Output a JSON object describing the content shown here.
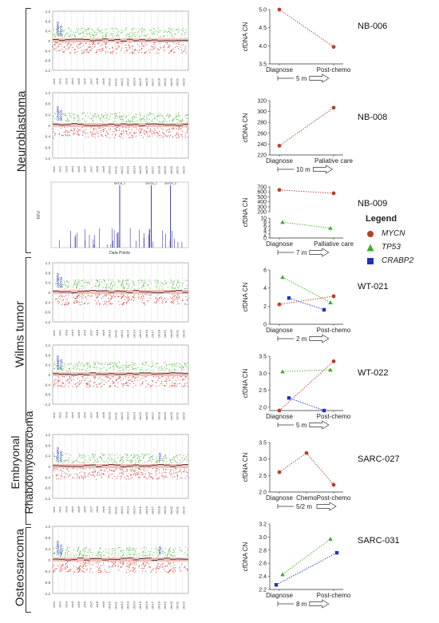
{
  "groups": [
    {
      "label": "Neuroblastoma"
    },
    {
      "label": "Wilms tumor"
    },
    {
      "label": "Embryonal Rhabdomyosarcoma"
    },
    {
      "label": "Osteosarcoma"
    }
  ],
  "cn_axis_ticks": [
    "1.2",
    "0.8",
    "0.4",
    "0",
    "-0.4",
    "-0.8",
    "-1.2"
  ],
  "chromosomes": [
    "chr1",
    "chr2",
    "chr3",
    "chr4",
    "chr5",
    "chr6",
    "chr7",
    "chr8",
    "chr9",
    "chr10",
    "chr11",
    "chr12",
    "chr13",
    "chr14",
    "chr15",
    "chr16",
    "chr17",
    "chr18",
    "chr19",
    "chr20",
    "chr21",
    "chr22"
  ],
  "cn_panels": [
    {
      "gene_labels": [
        "CRABP2",
        "MYCN"
      ]
    },
    {
      "gene_labels": [
        "CRABP2",
        "MYCN"
      ]
    },
    {
      "gene_labels": [
        "CRABP2",
        "MYCN"
      ]
    },
    {
      "gene_labels": [
        "CRABP2",
        "MYCN"
      ]
    },
    {
      "gene_labels": [
        "CRABP2",
        "MYCN",
        "TP53"
      ]
    },
    {
      "gene_labels": [
        "CRABP2",
        "MYCN",
        "TP53"
      ]
    }
  ],
  "rfu_panel": {
    "ylabel": "RFU",
    "xlabel": "Data Points",
    "peak_labels": [
      "MYCN_1",
      "MYCN_2",
      "MYCN_3"
    ]
  },
  "legend": {
    "title": "Legend",
    "items": [
      {
        "label": "MYCN",
        "color": "#b5412b",
        "marker": "circle"
      },
      {
        "label": "TP53",
        "color": "#3fae2a",
        "marker": "triangle"
      },
      {
        "label": "CRABP2",
        "color": "#2230c4",
        "marker": "square"
      }
    ]
  },
  "chart_data": [
    {
      "type": "line",
      "id": "NB-006",
      "ylabel": "cfDNA CN",
      "categories": [
        "Diagnose",
        "Post-chemo"
      ],
      "interval": "5 m",
      "ylim": [
        3.5,
        5.0
      ],
      "yticks": [
        "3.5",
        "4.0",
        "4.5",
        "5.0"
      ],
      "series": [
        {
          "name": "MYCN",
          "values": [
            5.0,
            3.97
          ]
        }
      ]
    },
    {
      "type": "line",
      "id": "NB-008",
      "ylabel": "cfDNA CN",
      "categories": [
        "Diagnose",
        "Paliative care"
      ],
      "interval": "10 m",
      "ylim": [
        220,
        320
      ],
      "yticks": [
        "220",
        "240",
        "260",
        "280",
        "300",
        "320"
      ],
      "series": [
        {
          "name": "MYCN",
          "values": [
            237,
            307
          ]
        }
      ]
    },
    {
      "type": "line",
      "id": "NB-009",
      "ylabel": "cfDNA CN",
      "categories": [
        "Diagnose",
        "Palliative care"
      ],
      "interval": "7 m",
      "broken_axis": true,
      "ylim_upper": [
        200,
        700
      ],
      "ylim_lower": [
        0,
        10
      ],
      "yticks_upper": [
        "200",
        "300",
        "400",
        "500",
        "600",
        "700"
      ],
      "yticks_lower": [
        "0",
        "2",
        "4",
        "6",
        "8",
        "10"
      ],
      "series": [
        {
          "name": "MYCN",
          "values": [
            640,
            572
          ]
        },
        {
          "name": "TP53",
          "values": [
            8.0,
            5.0
          ]
        }
      ]
    },
    {
      "type": "line",
      "id": "WT-021",
      "ylabel": "cfDNA CN",
      "categories": [
        "Diagnose",
        "Post-chemo"
      ],
      "interval": "2 m",
      "ylim": [
        0,
        6
      ],
      "yticks": [
        "0",
        "2",
        "4",
        "6"
      ],
      "series": [
        {
          "name": "MYCN",
          "values": [
            2.2,
            3.1
          ]
        },
        {
          "name": "TP53",
          "values": [
            5.2,
            2.4
          ]
        },
        {
          "name": "CRABP2",
          "values": [
            2.9,
            1.6
          ]
        }
      ]
    },
    {
      "type": "line",
      "id": "WT-022",
      "ylabel": "cfDNA CN",
      "categories": [
        "Diagnose",
        "Post-chemo"
      ],
      "interval": "5 m",
      "ylim": [
        1.9,
        3.5
      ],
      "yticks": [
        "2.0",
        "2.5",
        "3.0",
        "3.5"
      ],
      "series": [
        {
          "name": "MYCN",
          "values": [
            1.9,
            3.35
          ]
        },
        {
          "name": "TP53",
          "values": [
            3.05,
            3.1
          ]
        },
        {
          "name": "CRABP2",
          "values": [
            2.27,
            1.9
          ]
        }
      ]
    },
    {
      "type": "line",
      "id": "SARC-027",
      "ylabel": "cfDNA CN",
      "categories": [
        "Diagnose",
        "Chemo",
        "Post-chemo"
      ],
      "interval": "5/2 m",
      "ylim": [
        2.0,
        3.5
      ],
      "yticks": [
        "2.0",
        "2.5",
        "3.0",
        "3.5"
      ],
      "series": [
        {
          "name": "MYCN",
          "values": [
            2.6,
            3.18,
            2.22
          ]
        }
      ]
    },
    {
      "type": "line",
      "id": "SARC-031",
      "ylabel": "cfDNA CN",
      "categories": [
        "Diagnose",
        "Post-chemo"
      ],
      "interval": "8 m",
      "ylim": [
        2.2,
        3.2
      ],
      "yticks": [
        "2.2",
        "2.4",
        "2.6",
        "2.8",
        "3.0",
        "3.2"
      ],
      "series": [
        {
          "name": "CRABP2",
          "values": [
            2.27,
            2.76
          ]
        },
        {
          "name": "TP53",
          "values": [
            2.43,
            2.97
          ]
        }
      ]
    }
  ]
}
